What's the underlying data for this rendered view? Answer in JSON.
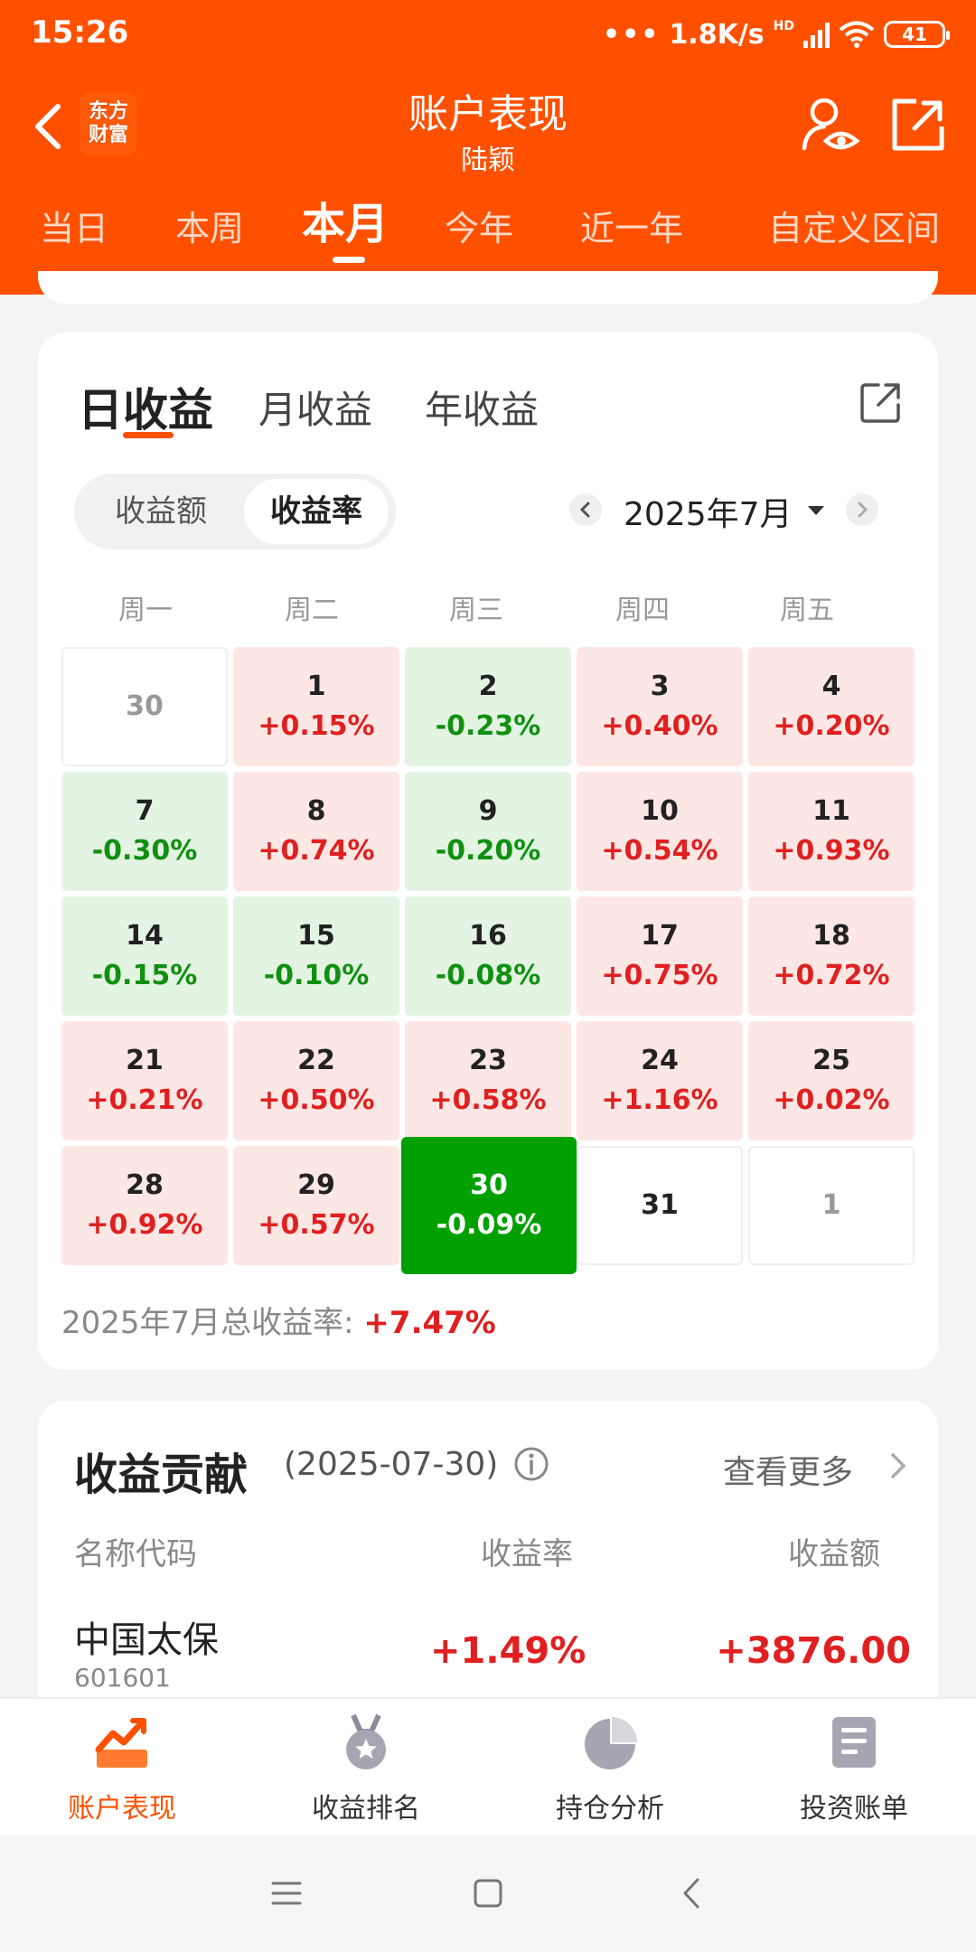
{
  "status": {
    "time": "15:26",
    "network": "1.8K/s",
    "net_type": "HD",
    "battery": "41"
  },
  "header": {
    "logo_line1": "东方",
    "logo_line2": "财富",
    "title": "账户表现",
    "subtitle": "陆颖"
  },
  "period_tabs": [
    "当日",
    "本周",
    "本月",
    "今年",
    "近一年",
    "自定义区间"
  ],
  "period_active": "本月",
  "return_tabs": [
    "日收益",
    "月收益",
    "年收益"
  ],
  "segment": {
    "left": "收益额",
    "right": "收益率",
    "selected": "收益率"
  },
  "month_picker": {
    "label": "2025年7月"
  },
  "weekdays": [
    "周一",
    "周二",
    "周三",
    "周四",
    "周五"
  ],
  "calendar": [
    [
      {
        "day": "30",
        "value": "",
        "type": "blank other"
      },
      {
        "day": "1",
        "value": "+0.15%",
        "type": "up"
      },
      {
        "day": "2",
        "value": "-0.23%",
        "type": "down"
      },
      {
        "day": "3",
        "value": "+0.40%",
        "type": "up"
      },
      {
        "day": "4",
        "value": "+0.20%",
        "type": "up"
      }
    ],
    [
      {
        "day": "7",
        "value": "-0.30%",
        "type": "down"
      },
      {
        "day": "8",
        "value": "+0.74%",
        "type": "up"
      },
      {
        "day": "9",
        "value": "-0.20%",
        "type": "down"
      },
      {
        "day": "10",
        "value": "+0.54%",
        "type": "up"
      },
      {
        "day": "11",
        "value": "+0.93%",
        "type": "up"
      }
    ],
    [
      {
        "day": "14",
        "value": "-0.15%",
        "type": "down"
      },
      {
        "day": "15",
        "value": "-0.10%",
        "type": "down"
      },
      {
        "day": "16",
        "value": "-0.08%",
        "type": "down"
      },
      {
        "day": "17",
        "value": "+0.75%",
        "type": "up"
      },
      {
        "day": "18",
        "value": "+0.72%",
        "type": "up"
      }
    ],
    [
      {
        "day": "21",
        "value": "+0.21%",
        "type": "up"
      },
      {
        "day": "22",
        "value": "+0.50%",
        "type": "up"
      },
      {
        "day": "23",
        "value": "+0.58%",
        "type": "up"
      },
      {
        "day": "24",
        "value": "+1.16%",
        "type": "up"
      },
      {
        "day": "25",
        "value": "+0.02%",
        "type": "up"
      }
    ],
    [
      {
        "day": "28",
        "value": "+0.92%",
        "type": "up"
      },
      {
        "day": "29",
        "value": "+0.57%",
        "type": "up"
      },
      {
        "day": "30",
        "value": "-0.09%",
        "type": "selected"
      },
      {
        "day": "31",
        "value": "",
        "type": "blank"
      },
      {
        "day": "1",
        "value": "",
        "type": "blank other"
      }
    ]
  ],
  "month_total": {
    "label": "2025年7月总收益率: ",
    "value": "+7.47%"
  },
  "contribution": {
    "title": "收益贡献",
    "date": "(2025-07-30)",
    "more": "查看更多",
    "columns": {
      "name": "名称代码",
      "rate": "收益率",
      "amount": "收益额"
    },
    "rows": [
      {
        "name": "中国太保",
        "code": "601601",
        "rate": "+1.49%",
        "amount": "+3876.00"
      }
    ]
  },
  "bottom_nav": [
    {
      "label": "账户表现",
      "icon": "trend-chart-icon"
    },
    {
      "label": "收益排名",
      "icon": "medal-icon"
    },
    {
      "label": "持仓分析",
      "icon": "pie-chart-icon"
    },
    {
      "label": "投资账单",
      "icon": "bill-icon"
    }
  ],
  "colors": {
    "brand": "#ff5000",
    "up": "#e02020",
    "down": "#109010",
    "selected": "#00a000"
  }
}
